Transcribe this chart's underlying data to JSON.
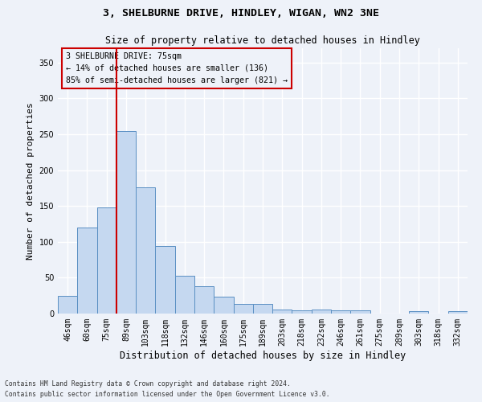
{
  "title_line1": "3, SHELBURNE DRIVE, HINDLEY, WIGAN, WN2 3NE",
  "title_line2": "Size of property relative to detached houses in Hindley",
  "xlabel": "Distribution of detached houses by size in Hindley",
  "ylabel": "Number of detached properties",
  "categories": [
    "46sqm",
    "60sqm",
    "75sqm",
    "89sqm",
    "103sqm",
    "118sqm",
    "132sqm",
    "146sqm",
    "160sqm",
    "175sqm",
    "189sqm",
    "203sqm",
    "218sqm",
    "232sqm",
    "246sqm",
    "261sqm",
    "275sqm",
    "289sqm",
    "303sqm",
    "318sqm",
    "332sqm"
  ],
  "values": [
    25,
    120,
    148,
    255,
    176,
    94,
    53,
    38,
    23,
    13,
    13,
    6,
    5,
    6,
    5,
    4,
    0,
    0,
    3,
    0,
    3
  ],
  "bar_color": "#c5d8f0",
  "bar_edge_color": "#5a8fc3",
  "property_index": 2,
  "annotation_line1": "3 SHELBURNE DRIVE: 75sqm",
  "annotation_line2": "← 14% of detached houses are smaller (136)",
  "annotation_line3": "85% of semi-detached houses are larger (821) →",
  "redline_color": "#cc0000",
  "annotation_box_edge": "#cc0000",
  "background_color": "#eef2f9",
  "footer_line1": "Contains HM Land Registry data © Crown copyright and database right 2024.",
  "footer_line2": "Contains public sector information licensed under the Open Government Licence v3.0.",
  "ylim": [
    0,
    370
  ],
  "grid_color": "#ffffff"
}
